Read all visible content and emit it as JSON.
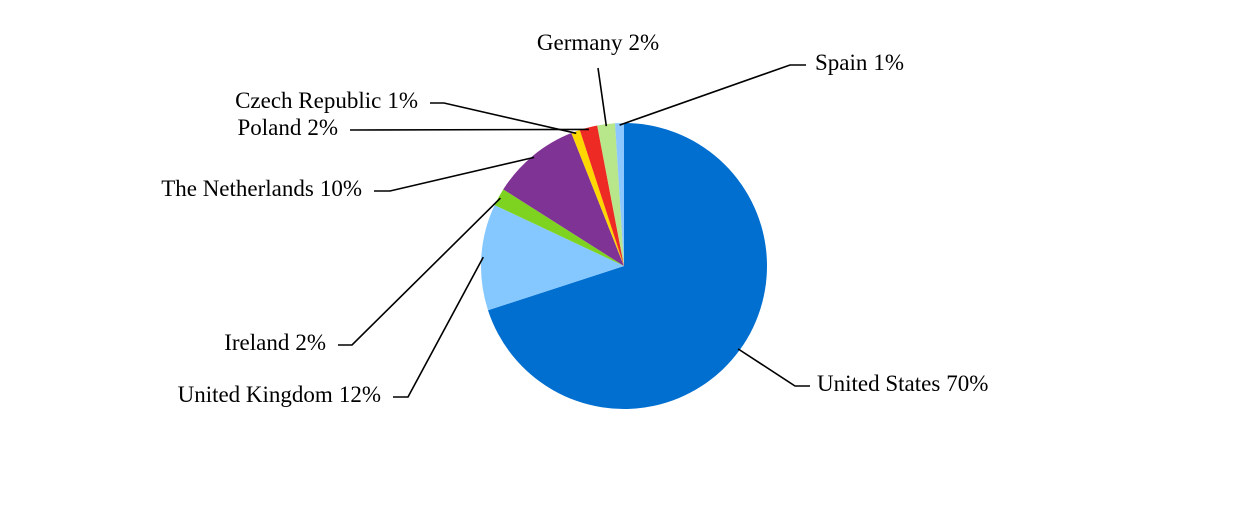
{
  "chart_data": {
    "type": "pie",
    "categories": [
      "United States",
      "United Kingdom",
      "Ireland",
      "The Netherlands",
      "Czech Republic",
      "Poland",
      "Germany",
      "Spain"
    ],
    "values": [
      70,
      12,
      2,
      10,
      1,
      2,
      2,
      1
    ],
    "value_labels": [
      "70%",
      "12%",
      "2%",
      "10%",
      "1%",
      "2%",
      "2%",
      "1%"
    ],
    "colors": [
      "#006fd0",
      "#85c8ff",
      "#7ed321",
      "#7f3394",
      "#ffd700",
      "#ee2a24",
      "#b8e68a",
      "#8cc8ff"
    ]
  }
}
